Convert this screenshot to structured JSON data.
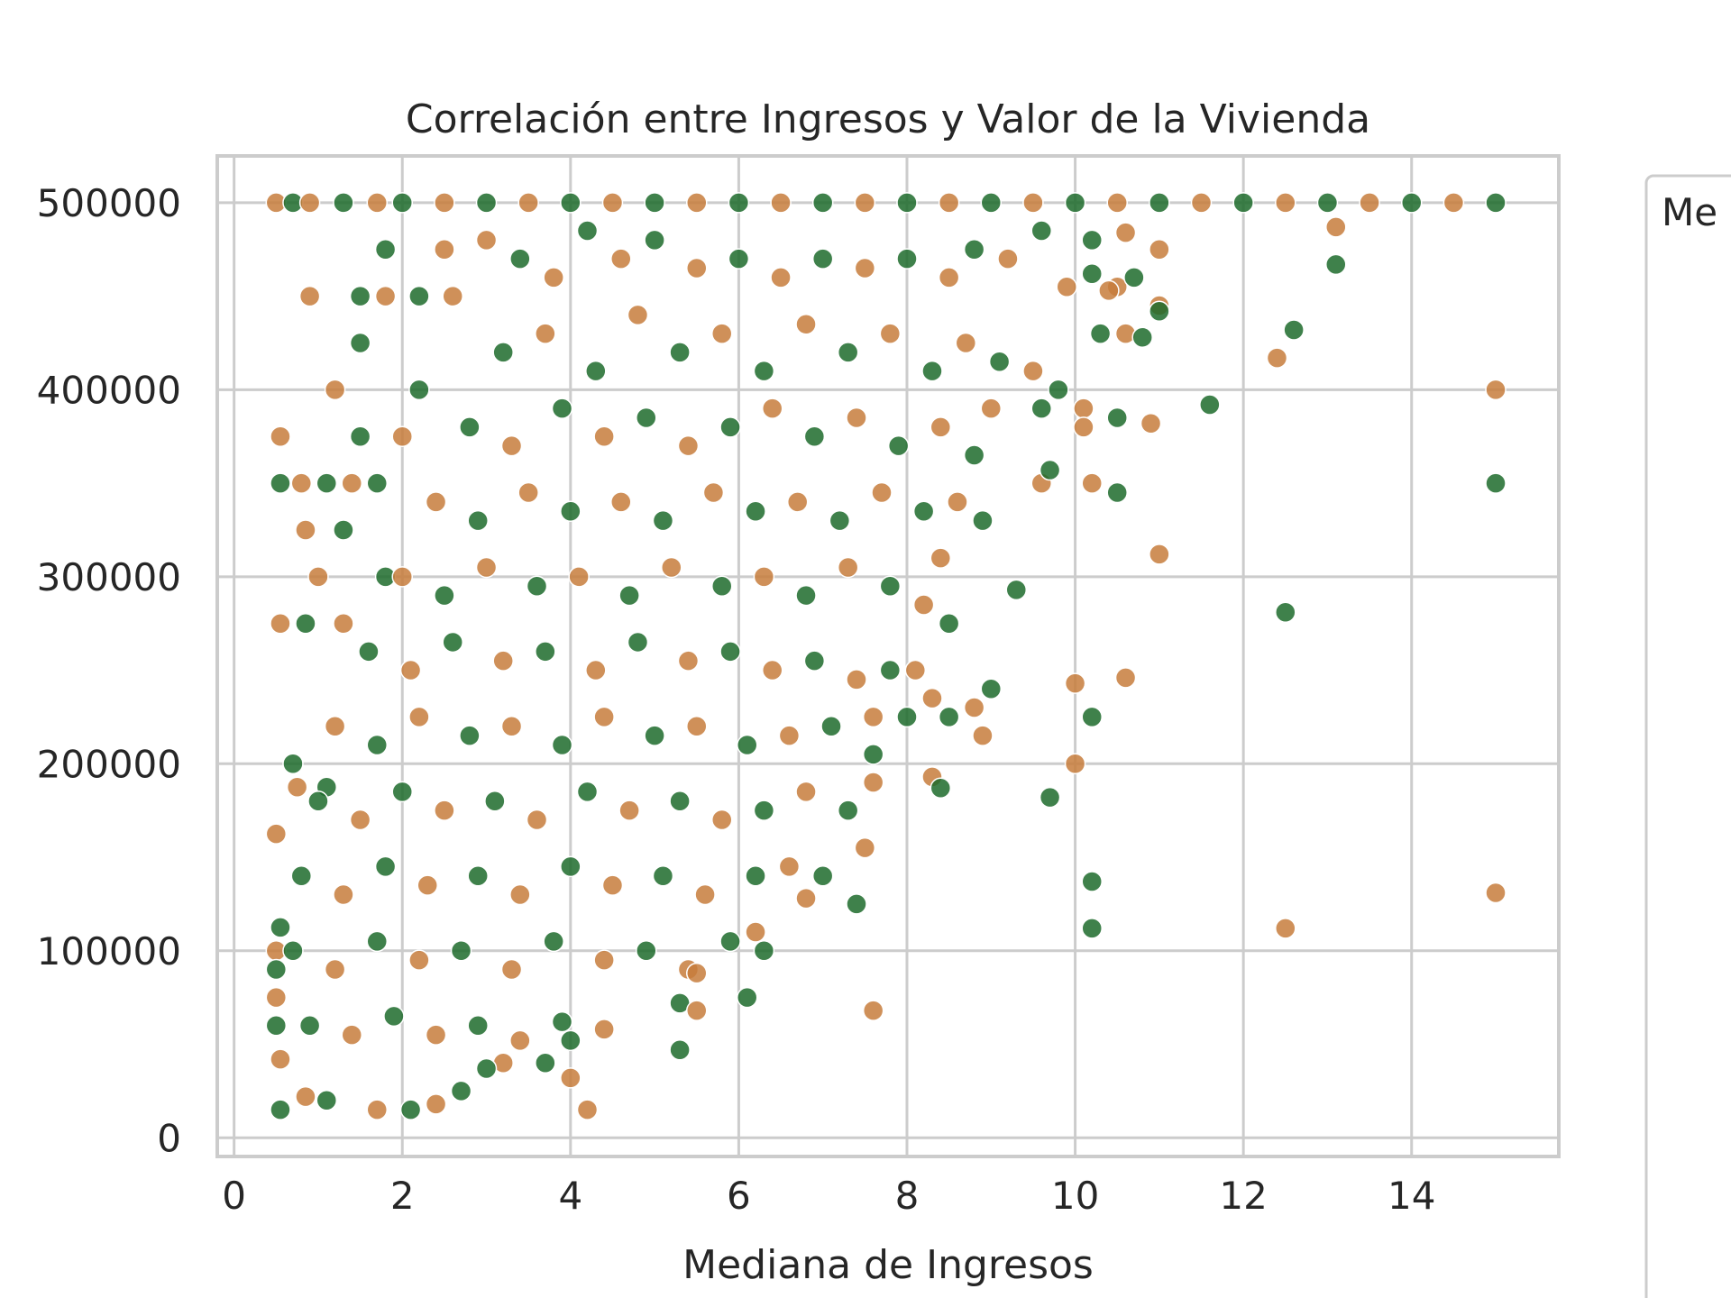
{
  "chart_data": {
    "type": "scatter",
    "title": "Correlación entre Ingresos y Valor de la Vivienda",
    "xlabel": "Mediana de Ingresos",
    "ylabel": "",
    "xlim": [
      -0.2,
      15.75
    ],
    "ylim": [
      -10000,
      525000
    ],
    "xticks": [
      0,
      2,
      4,
      6,
      8,
      10,
      12,
      14
    ],
    "yticks": [
      0,
      100000,
      200000,
      300000,
      400000,
      500000
    ],
    "xtick_labels": [
      "0",
      "2",
      "4",
      "6",
      "8",
      "10",
      "12",
      "14"
    ],
    "ytick_labels": [
      "0",
      "100000",
      "200000",
      "300000",
      "400000",
      "500000"
    ],
    "grid": true,
    "legend": {
      "title": "Me",
      "placement": "outside-right"
    },
    "palette": [
      "#1f3a93",
      "#7a1f1f",
      "#2e8b57",
      "#c77c3c",
      "#b8860b",
      "#3b8a8e",
      "#6b3a8a",
      "#b0307a",
      "#8b5a3c",
      "#555555",
      "#1d6b2b",
      "#a31515",
      "#2a2a6e",
      "#c05a80"
    ],
    "series": [
      {
        "name": "",
        "points": [
          [
            0.5,
            500000
          ],
          [
            0.7,
            500000
          ],
          [
            0.9,
            500000
          ],
          [
            1.3,
            500000
          ],
          [
            1.7,
            500000
          ],
          [
            2.0,
            500000
          ],
          [
            2.5,
            500000
          ],
          [
            3.0,
            500000
          ],
          [
            3.5,
            500000
          ],
          [
            4.0,
            500000
          ],
          [
            4.5,
            500000
          ],
          [
            5.0,
            500000
          ],
          [
            5.5,
            500000
          ],
          [
            6.0,
            500000
          ],
          [
            6.5,
            500000
          ],
          [
            7.0,
            500000
          ],
          [
            7.5,
            500000
          ],
          [
            8.0,
            500000
          ],
          [
            8.5,
            500000
          ],
          [
            9.0,
            500000
          ],
          [
            9.5,
            500000
          ],
          [
            10.0,
            500000
          ],
          [
            10.5,
            500000
          ],
          [
            11.0,
            500000
          ],
          [
            11.5,
            500000
          ],
          [
            12.0,
            500000
          ],
          [
            12.5,
            500000
          ],
          [
            13.0,
            500000
          ],
          [
            13.5,
            500000
          ],
          [
            14.0,
            500000
          ],
          [
            14.5,
            500000
          ],
          [
            15.0,
            500000
          ],
          [
            0.9,
            450000
          ],
          [
            1.5,
            450000
          ],
          [
            1.8,
            450000
          ],
          [
            2.2,
            450000
          ],
          [
            2.6,
            450000
          ],
          [
            1.8,
            475000
          ],
          [
            2.5,
            475000
          ],
          [
            1.5,
            425000
          ],
          [
            1.2,
            400000
          ],
          [
            2.2,
            400000
          ],
          [
            0.55,
            375000
          ],
          [
            1.5,
            375000
          ],
          [
            2.0,
            375000
          ],
          [
            0.55,
            350000
          ],
          [
            0.8,
            350000
          ],
          [
            1.1,
            350000
          ],
          [
            1.4,
            350000
          ],
          [
            1.7,
            350000
          ],
          [
            0.85,
            325000
          ],
          [
            1.3,
            325000
          ],
          [
            1.0,
            300000
          ],
          [
            1.8,
            300000
          ],
          [
            0.55,
            275000
          ],
          [
            0.85,
            275000
          ],
          [
            1.3,
            275000
          ],
          [
            0.7,
            200000
          ],
          [
            0.75,
            187500
          ],
          [
            1.1,
            187500
          ],
          [
            0.5,
            162500
          ],
          [
            0.55,
            112500
          ],
          [
            0.5,
            100000
          ],
          [
            0.5,
            90000
          ],
          [
            0.5,
            75000
          ],
          [
            0.5,
            60000
          ],
          [
            0.55,
            42000
          ],
          [
            0.55,
            15000
          ],
          [
            0.85,
            22000
          ],
          [
            1.1,
            20000
          ],
          [
            1.7,
            15000
          ],
          [
            2.1,
            15000
          ],
          [
            2.4,
            18000
          ],
          [
            2.7,
            25000
          ],
          [
            3.0,
            480000
          ],
          [
            3.4,
            470000
          ],
          [
            3.8,
            460000
          ],
          [
            4.2,
            485000
          ],
          [
            4.6,
            470000
          ],
          [
            5.0,
            480000
          ],
          [
            5.5,
            465000
          ],
          [
            6.0,
            470000
          ],
          [
            6.5,
            460000
          ],
          [
            7.0,
            470000
          ],
          [
            7.5,
            465000
          ],
          [
            8.0,
            470000
          ],
          [
            8.5,
            460000
          ],
          [
            8.8,
            475000
          ],
          [
            9.2,
            470000
          ],
          [
            9.6,
            485000
          ],
          [
            9.9,
            455000
          ],
          [
            10.2,
            480000
          ],
          [
            10.5,
            455000
          ],
          [
            10.7,
            460000
          ],
          [
            11.0,
            445000
          ],
          [
            3.2,
            420000
          ],
          [
            3.7,
            430000
          ],
          [
            4.3,
            410000
          ],
          [
            4.8,
            440000
          ],
          [
            5.3,
            420000
          ],
          [
            5.8,
            430000
          ],
          [
            6.3,
            410000
          ],
          [
            6.8,
            435000
          ],
          [
            7.3,
            420000
          ],
          [
            7.8,
            430000
          ],
          [
            8.3,
            410000
          ],
          [
            8.7,
            425000
          ],
          [
            9.1,
            415000
          ],
          [
            9.5,
            410000
          ],
          [
            9.8,
            400000
          ],
          [
            10.1,
            390000
          ],
          [
            10.3,
            430000
          ],
          [
            10.6,
            430000
          ],
          [
            2.8,
            380000
          ],
          [
            3.3,
            370000
          ],
          [
            3.9,
            390000
          ],
          [
            4.4,
            375000
          ],
          [
            4.9,
            385000
          ],
          [
            5.4,
            370000
          ],
          [
            5.9,
            380000
          ],
          [
            6.4,
            390000
          ],
          [
            6.9,
            375000
          ],
          [
            7.4,
            385000
          ],
          [
            7.9,
            370000
          ],
          [
            8.4,
            380000
          ],
          [
            8.8,
            365000
          ],
          [
            9.0,
            390000
          ],
          [
            9.6,
            390000
          ],
          [
            10.1,
            380000
          ],
          [
            10.5,
            385000
          ],
          [
            10.9,
            382000
          ],
          [
            11.6,
            392000
          ],
          [
            2.4,
            340000
          ],
          [
            2.9,
            330000
          ],
          [
            3.5,
            345000
          ],
          [
            4.0,
            335000
          ],
          [
            4.6,
            340000
          ],
          [
            5.1,
            330000
          ],
          [
            5.7,
            345000
          ],
          [
            6.2,
            335000
          ],
          [
            6.7,
            340000
          ],
          [
            7.2,
            330000
          ],
          [
            7.7,
            345000
          ],
          [
            8.2,
            335000
          ],
          [
            8.6,
            340000
          ],
          [
            8.9,
            330000
          ],
          [
            9.6,
            350000
          ],
          [
            9.7,
            357000
          ],
          [
            10.2,
            350000
          ],
          [
            10.5,
            345000
          ],
          [
            2.0,
            300000
          ],
          [
            2.5,
            290000
          ],
          [
            3.0,
            305000
          ],
          [
            3.6,
            295000
          ],
          [
            4.1,
            300000
          ],
          [
            4.7,
            290000
          ],
          [
            5.2,
            305000
          ],
          [
            5.8,
            295000
          ],
          [
            6.3,
            300000
          ],
          [
            6.8,
            290000
          ],
          [
            7.3,
            305000
          ],
          [
            7.8,
            295000
          ],
          [
            8.2,
            285000
          ],
          [
            8.5,
            275000
          ],
          [
            8.4,
            310000
          ],
          [
            9.3,
            293000
          ],
          [
            11.0,
            312000
          ],
          [
            1.6,
            260000
          ],
          [
            2.1,
            250000
          ],
          [
            2.6,
            265000
          ],
          [
            3.2,
            255000
          ],
          [
            3.7,
            260000
          ],
          [
            4.3,
            250000
          ],
          [
            4.8,
            265000
          ],
          [
            5.4,
            255000
          ],
          [
            5.9,
            260000
          ],
          [
            6.4,
            250000
          ],
          [
            6.9,
            255000
          ],
          [
            7.4,
            245000
          ],
          [
            7.8,
            250000
          ],
          [
            8.1,
            250000
          ],
          [
            12.5,
            281000
          ],
          [
            1.2,
            220000
          ],
          [
            1.7,
            210000
          ],
          [
            2.2,
            225000
          ],
          [
            2.8,
            215000
          ],
          [
            3.3,
            220000
          ],
          [
            3.9,
            210000
          ],
          [
            4.4,
            225000
          ],
          [
            5.0,
            215000
          ],
          [
            5.5,
            220000
          ],
          [
            6.1,
            210000
          ],
          [
            6.6,
            215000
          ],
          [
            7.1,
            220000
          ],
          [
            7.6,
            225000
          ],
          [
            8.0,
            225000
          ],
          [
            8.3,
            235000
          ],
          [
            8.5,
            225000
          ],
          [
            8.8,
            230000
          ],
          [
            9.0,
            240000
          ],
          [
            10.0,
            243000
          ],
          [
            10.2,
            225000
          ],
          [
            10.6,
            246000
          ],
          [
            1.0,
            180000
          ],
          [
            1.5,
            170000
          ],
          [
            2.0,
            185000
          ],
          [
            2.5,
            175000
          ],
          [
            3.1,
            180000
          ],
          [
            3.6,
            170000
          ],
          [
            4.2,
            185000
          ],
          [
            4.7,
            175000
          ],
          [
            5.3,
            180000
          ],
          [
            5.8,
            170000
          ],
          [
            6.3,
            175000
          ],
          [
            6.8,
            185000
          ],
          [
            7.3,
            175000
          ],
          [
            7.6,
            190000
          ],
          [
            7.6,
            205000
          ],
          [
            8.3,
            193000
          ],
          [
            8.4,
            187000
          ],
          [
            8.9,
            215000
          ],
          [
            9.7,
            182000
          ],
          [
            10.0,
            200000
          ],
          [
            0.8,
            140000
          ],
          [
            1.3,
            130000
          ],
          [
            1.8,
            145000
          ],
          [
            2.3,
            135000
          ],
          [
            2.9,
            140000
          ],
          [
            3.4,
            130000
          ],
          [
            4.0,
            145000
          ],
          [
            4.5,
            135000
          ],
          [
            5.1,
            140000
          ],
          [
            5.6,
            130000
          ],
          [
            6.2,
            140000
          ],
          [
            6.6,
            145000
          ],
          [
            7.0,
            140000
          ],
          [
            7.5,
            155000
          ],
          [
            7.4,
            125000
          ],
          [
            6.8,
            128000
          ],
          [
            10.2,
            137000
          ],
          [
            15.0,
            131000
          ],
          [
            0.7,
            100000
          ],
          [
            1.2,
            90000
          ],
          [
            1.7,
            105000
          ],
          [
            2.2,
            95000
          ],
          [
            2.7,
            100000
          ],
          [
            3.3,
            90000
          ],
          [
            3.8,
            105000
          ],
          [
            4.4,
            95000
          ],
          [
            4.9,
            100000
          ],
          [
            5.4,
            90000
          ],
          [
            5.9,
            105000
          ],
          [
            6.2,
            110000
          ],
          [
            6.3,
            100000
          ],
          [
            5.5,
            88000
          ],
          [
            10.2,
            112000
          ],
          [
            12.5,
            112000
          ],
          [
            0.9,
            60000
          ],
          [
            1.4,
            55000
          ],
          [
            1.9,
            65000
          ],
          [
            2.4,
            55000
          ],
          [
            2.9,
            60000
          ],
          [
            3.4,
            52000
          ],
          [
            3.9,
            62000
          ],
          [
            4.4,
            58000
          ],
          [
            5.3,
            72000
          ],
          [
            5.5,
            68000
          ],
          [
            6.1,
            75000
          ],
          [
            7.6,
            68000
          ],
          [
            4.0,
            52000
          ],
          [
            4.0,
            32000
          ],
          [
            3.7,
            40000
          ],
          [
            3.2,
            40000
          ],
          [
            3.0,
            37000
          ],
          [
            4.2,
            15000
          ],
          [
            5.3,
            47000
          ],
          [
            15.0,
            400000
          ],
          [
            15.0,
            350000
          ],
          [
            12.4,
            417000
          ],
          [
            12.6,
            432000
          ],
          [
            13.1,
            487000
          ],
          [
            13.1,
            467000
          ],
          [
            11.0,
            475000
          ],
          [
            11.0,
            442000
          ],
          [
            10.6,
            484000
          ],
          [
            10.2,
            462000
          ],
          [
            10.4,
            453000
          ],
          [
            10.8,
            428000
          ]
        ]
      }
    ]
  }
}
